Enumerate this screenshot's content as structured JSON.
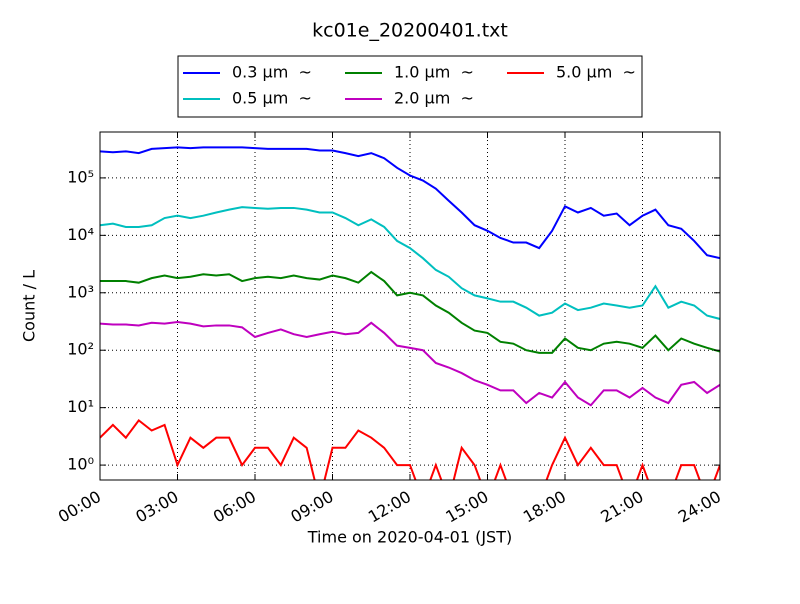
{
  "chart_data": {
    "type": "line",
    "title": "kc01e_20200401.txt",
    "x_label": "Time on 2020-04-01 (JST)",
    "y_label": "Count / L",
    "log_y": true,
    "grid": true,
    "legend": "upper center",
    "xlim": [
      0,
      24
    ],
    "xticks": [
      {
        "value": 0,
        "label": "00:00"
      },
      {
        "value": 3,
        "label": "03:00"
      },
      {
        "value": 6,
        "label": "06:00"
      },
      {
        "value": 9,
        "label": "09:00"
      },
      {
        "value": 12,
        "label": "12:00"
      },
      {
        "value": 15,
        "label": "15:00"
      },
      {
        "value": 18,
        "label": "18:00"
      },
      {
        "value": 21,
        "label": "21:00"
      },
      {
        "value": 24,
        "label": "24:00"
      }
    ],
    "ylim": [
      0.55,
      630000
    ],
    "yticks": [
      {
        "value": 1,
        "label": "10⁰"
      },
      {
        "value": 10,
        "label": "10¹"
      },
      {
        "value": 100,
        "label": "10²"
      },
      {
        "value": 1000,
        "label": "10³"
      },
      {
        "value": 10000,
        "label": "10⁴"
      },
      {
        "value": 100000,
        "label": "10⁵"
      }
    ],
    "x": [
      0,
      0.5,
      1,
      1.5,
      2,
      2.5,
      3,
      3.5,
      4,
      4.5,
      5,
      5.5,
      6,
      6.5,
      7,
      7.5,
      8,
      8.5,
      9,
      9.5,
      10,
      10.5,
      11,
      11.5,
      12,
      12.5,
      13,
      13.5,
      14,
      14.5,
      15,
      15.5,
      16,
      16.5,
      17,
      17.5,
      18,
      18.5,
      19,
      19.5,
      20,
      20.5,
      21,
      21.5,
      22,
      22.5,
      23,
      23.5,
      24
    ],
    "series": [
      {
        "name": "0.3 μm  ~",
        "color": "#0000ff",
        "values": [
          290000,
          280000,
          290000,
          270000,
          320000,
          330000,
          340000,
          330000,
          340000,
          340000,
          340000,
          340000,
          330000,
          320000,
          320000,
          320000,
          320000,
          300000,
          300000,
          270000,
          240000,
          270000,
          220000,
          150000,
          110000,
          90000,
          65000,
          40000,
          25000,
          15000,
          12000,
          9000,
          7500,
          7500,
          6000,
          12000,
          32000,
          25000,
          30000,
          22000,
          24000,
          15000,
          22000,
          28000,
          15000,
          13000,
          8000,
          4500,
          4000
        ]
      },
      {
        "name": "0.5 μm  ~",
        "color": "#00bfbf",
        "values": [
          15000,
          16000,
          14000,
          14000,
          15000,
          20000,
          22000,
          20000,
          22000,
          25000,
          28000,
          31000,
          30000,
          29000,
          30000,
          30000,
          28000,
          25000,
          25000,
          20000,
          15000,
          19000,
          14000,
          8000,
          6000,
          4000,
          2500,
          1900,
          1200,
          900,
          800,
          700,
          700,
          550,
          400,
          450,
          650,
          500,
          550,
          650,
          600,
          550,
          600,
          1300,
          550,
          700,
          600,
          400,
          350
        ]
      },
      {
        "name": "1.0 μm  ~",
        "color": "#008000",
        "values": [
          1600,
          1600,
          1600,
          1500,
          1800,
          2000,
          1800,
          1900,
          2100,
          2000,
          2100,
          1600,
          1800,
          1900,
          1800,
          2000,
          1800,
          1700,
          2000,
          1800,
          1500,
          2300,
          1600,
          900,
          1000,
          900,
          600,
          450,
          300,
          220,
          200,
          140,
          130,
          100,
          90,
          90,
          160,
          110,
          100,
          130,
          140,
          130,
          110,
          180,
          100,
          160,
          130,
          110,
          95
        ]
      },
      {
        "name": "2.0 μm  ~",
        "color": "#bf00bf",
        "values": [
          290,
          280,
          280,
          270,
          300,
          290,
          310,
          290,
          260,
          270,
          270,
          250,
          170,
          200,
          230,
          190,
          170,
          190,
          210,
          190,
          200,
          300,
          200,
          120,
          110,
          100,
          60,
          50,
          40,
          30,
          25,
          20,
          20,
          12,
          18,
          15,
          28,
          15,
          11,
          20,
          20,
          15,
          22,
          15,
          12,
          25,
          28,
          18,
          25
        ]
      },
      {
        "name": "5.0 μm  ~",
        "color": "#ff0000",
        "values": [
          3,
          5,
          3,
          6,
          4,
          5,
          1,
          3,
          2,
          3,
          3,
          1,
          2,
          2,
          1,
          3,
          2,
          0,
          2,
          2,
          4,
          3,
          2,
          1,
          1,
          0,
          1,
          0,
          2,
          1,
          0,
          1,
          0,
          0,
          0,
          1,
          3,
          1,
          2,
          1,
          1,
          0,
          1,
          0,
          0,
          1,
          1,
          0,
          1
        ]
      }
    ]
  }
}
